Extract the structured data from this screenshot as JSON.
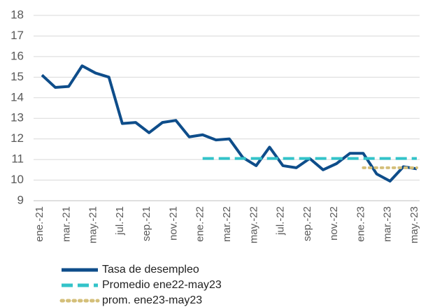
{
  "chart_data": {
    "type": "line",
    "categories": [
      "ene.-21",
      null,
      "mar.-21",
      null,
      "may.-21",
      null,
      "jul.-21",
      null,
      "sep.-21",
      null,
      "nov.-21",
      null,
      "ene.-22",
      null,
      "mar.-22",
      null,
      "may.-22",
      null,
      "jul.-22",
      null,
      "sep.-22",
      null,
      "nov.-22",
      null,
      "ene.-23",
      null,
      "mar.-23",
      null,
      "may.-23"
    ],
    "series": [
      {
        "name": "Tasa de desempleo",
        "color": "#0e4d8a",
        "style": "solid",
        "values": [
          15.1,
          14.5,
          14.55,
          15.55,
          15.2,
          15.0,
          12.75,
          12.8,
          12.3,
          12.8,
          12.9,
          12.1,
          12.2,
          11.95,
          12.0,
          11.1,
          10.7,
          11.6,
          10.7,
          10.6,
          11.05,
          10.5,
          10.8,
          11.3,
          11.3,
          10.3,
          9.95,
          10.65,
          10.55
        ]
      },
      {
        "name": "Promedio ene22-may23",
        "color": "#33c3c9",
        "style": "dashed",
        "values": [
          null,
          null,
          null,
          null,
          null,
          null,
          null,
          null,
          null,
          null,
          null,
          null,
          11.05,
          11.05,
          11.05,
          11.05,
          11.05,
          11.05,
          11.05,
          11.05,
          11.05,
          11.05,
          11.05,
          11.05,
          11.05,
          11.05,
          11.05,
          11.05,
          11.05
        ]
      },
      {
        "name": "prom. ene23-may23",
        "color": "#d4bf7a",
        "style": "dotted",
        "values": [
          null,
          null,
          null,
          null,
          null,
          null,
          null,
          null,
          null,
          null,
          null,
          null,
          null,
          null,
          null,
          null,
          null,
          null,
          null,
          null,
          null,
          null,
          null,
          null,
          10.6,
          10.6,
          10.6,
          10.6,
          10.6
        ]
      }
    ],
    "ylim": [
      9,
      18
    ],
    "yticks": [
      9,
      10,
      11,
      12,
      13,
      14,
      15,
      16,
      17,
      18
    ],
    "grid": true
  }
}
